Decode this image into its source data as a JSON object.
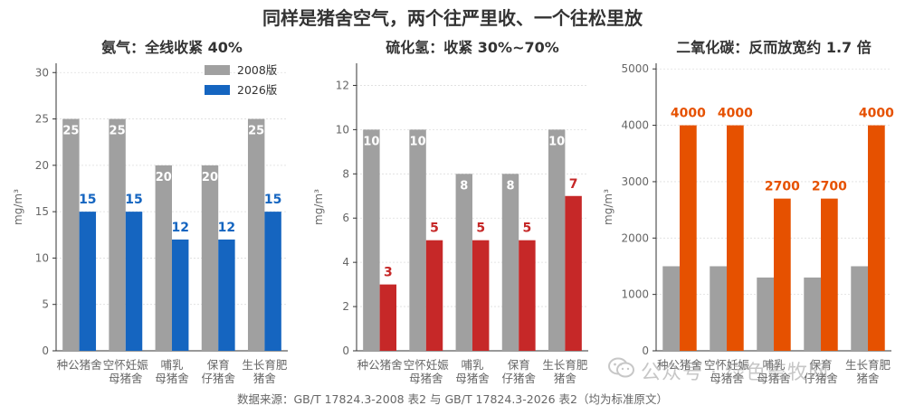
{
  "title": "同样是猪舍空气，两个往严里收、一个往松里放",
  "source": "数据来源：GB/T 17824.3-2008 表2 与 GB/T 17824.3-2026 表2（均为标准原文）",
  "watermark": "公众号 · 绿色畜牧网",
  "colors": {
    "old": "#a0a0a0",
    "new_nh3": "#1565c0",
    "new_h2s": "#c62828",
    "new_co2": "#e65100",
    "axis": "#333333",
    "grid": "#dddddd",
    "tick": "#666666"
  },
  "chart_data": [
    {
      "type": "bar",
      "title": "氨气：全线收紧 40%",
      "ylabel": "mg/m³",
      "ylim": [
        0,
        31
      ],
      "yticks": [
        0,
        5,
        10,
        15,
        20,
        25,
        30
      ],
      "categories": [
        "种公猪舍",
        "空怀妊娠母猪舍",
        "哺乳母猪舍",
        "保育仔猪舍",
        "生长育肥猪舍"
      ],
      "category_lines": [
        [
          "种公猪舍"
        ],
        [
          "空怀妊娠",
          "母猪舍"
        ],
        [
          "哺乳",
          "母猪舍"
        ],
        [
          "保育",
          "仔猪舍"
        ],
        [
          "生长育肥",
          "猪舍"
        ]
      ],
      "legend": "top-right",
      "series": [
        {
          "name": "2008版",
          "values": [
            25,
            25,
            20,
            20,
            25
          ],
          "labels": [
            "25",
            "25",
            "20",
            "20",
            "25"
          ],
          "color": "#a0a0a0"
        },
        {
          "name": "2026版",
          "values": [
            15,
            15,
            12,
            12,
            15
          ],
          "labels": [
            "15",
            "15",
            "12",
            "12",
            "15"
          ],
          "color": "#1565c0"
        }
      ]
    },
    {
      "type": "bar",
      "title": "硫化氢：收紧 30%~70%",
      "ylabel": "mg/m³",
      "ylim": [
        0,
        13
      ],
      "yticks": [
        0,
        2,
        4,
        6,
        8,
        10,
        12
      ],
      "categories": [
        "种公猪舍",
        "空怀妊娠母猪舍",
        "哺乳母猪舍",
        "保育仔猪舍",
        "生长育肥猪舍"
      ],
      "category_lines": [
        [
          "种公猪舍"
        ],
        [
          "空怀妊娠",
          "母猪舍"
        ],
        [
          "哺乳",
          "母猪舍"
        ],
        [
          "保育",
          "仔猪舍"
        ],
        [
          "生长育肥",
          "猪舍"
        ]
      ],
      "series": [
        {
          "name": "2008版",
          "values": [
            10,
            10,
            8,
            8,
            10
          ],
          "labels": [
            "10",
            "10",
            "8",
            "8",
            "10"
          ],
          "color": "#a0a0a0"
        },
        {
          "name": "2026版",
          "values": [
            3,
            5,
            5,
            5,
            7
          ],
          "labels": [
            "3",
            "5",
            "5",
            "5",
            "7"
          ],
          "color": "#c62828"
        }
      ]
    },
    {
      "type": "bar",
      "title": "二氧化碳：反而放宽约 1.7 倍",
      "ylabel": "mg/m³",
      "ylim": [
        0,
        5100
      ],
      "yticks": [
        0,
        1000,
        2000,
        3000,
        4000,
        5000
      ],
      "categories": [
        "种公猪舍",
        "空怀妊娠母猪舍",
        "哺乳母猪舍",
        "保育仔猪舍",
        "生长育肥猪舍"
      ],
      "category_lines": [
        [
          "种公猪舍"
        ],
        [
          "空怀妊娠",
          "母猪舍"
        ],
        [
          "哺乳",
          "母猪舍"
        ],
        [
          "保育",
          "仔猪舍"
        ],
        [
          "生长育肥",
          "猪舍"
        ]
      ],
      "series": [
        {
          "name": "2008版",
          "values": [
            1500,
            1500,
            1300,
            1300,
            1500
          ],
          "labels": [],
          "color": "#a0a0a0"
        },
        {
          "name": "2026版",
          "values": [
            4000,
            4000,
            2700,
            2700,
            4000
          ],
          "labels": [
            "4000",
            "4000",
            "2700",
            "2700",
            "4000"
          ],
          "color": "#e65100"
        }
      ]
    }
  ]
}
